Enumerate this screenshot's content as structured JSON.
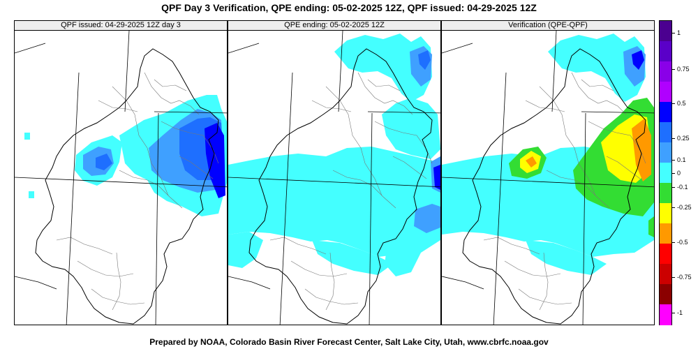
{
  "title": "QPF Day 3 Verification, QPE ending: 05-02-2025 12Z, QPF issued: 04-29-2025 12Z",
  "footer": "Prepared by NOAA, Colorado Basin River Forecast Center, Salt Lake City, Utah, www.cbrfc.noaa.gov",
  "panels": [
    {
      "label": "QPF issued: 04-29-2025 12Z day 3"
    },
    {
      "label": "QPE ending: 05-02-2025 12Z"
    },
    {
      "label": "Verification (QPE-QPF)"
    }
  ],
  "colorbar": {
    "labels": [
      "1",
      "0.75",
      "0.5",
      "0.25",
      "0.1",
      "0",
      "-0.1",
      "-0.25",
      "-0.5",
      "-0.75",
      "-1"
    ],
    "colors": [
      "#4b0090",
      "#5a00c8",
      "#8a00e8",
      "#b000ff",
      "#0000ff",
      "#1e6fff",
      "#3fa0ff",
      "#44ffff",
      "#33dd33",
      "#ffff00",
      "#ff9900",
      "#ff0000",
      "#cc0000",
      "#8b0000",
      "#ff00ff"
    ],
    "precip_colors": {
      "light": "#44ffff",
      "moderate": "#3fa0ff",
      "heavy": "#1e6fff",
      "very_heavy": "#0000ff"
    }
  }
}
